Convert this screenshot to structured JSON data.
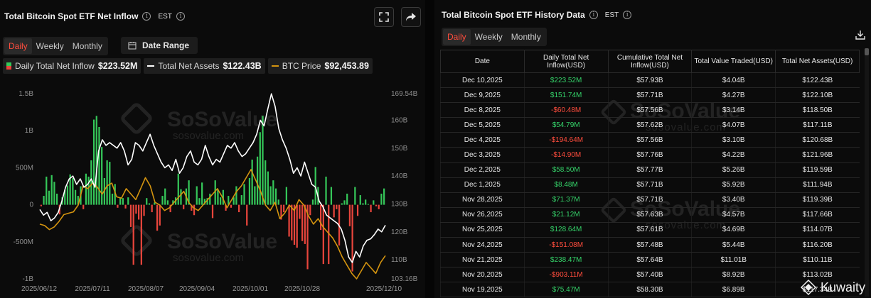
{
  "left": {
    "title": "Total Bitcoin Spot ETF Net Inflow",
    "timezone": "EST",
    "tabs": [
      {
        "label": "Daily",
        "active": true
      },
      {
        "label": "Weekly",
        "active": false
      },
      {
        "label": "Monthly",
        "active": false
      }
    ],
    "date_range_label": "Date Range",
    "legend": [
      {
        "label": "Daily Total Net Inflow",
        "value": "$223.52M",
        "color": "#35c759"
      },
      {
        "label": "Total Net Assets",
        "value": "$122.43B",
        "color": "#ffffff"
      },
      {
        "label": "BTC Price",
        "value": "$92,453.89",
        "color": "#d4940f"
      }
    ],
    "watermark": {
      "brand": "SoSoValue",
      "url": "sosovalue.com"
    }
  },
  "chart_data": {
    "type": "bar",
    "x_tick_labels": [
      "2025/06/12",
      "2025/07/11",
      "2025/08/07",
      "2025/09/04",
      "2025/10/01",
      "2025/10/28",
      "2025/12/10"
    ],
    "left_axis_ticks": [
      "1.5B",
      "1B",
      "500M",
      "0",
      "-500M",
      "-1B"
    ],
    "left_axis_range": [
      -1000000000,
      1500000000
    ],
    "right_axis_ticks": [
      "169.54B",
      "160B",
      "150B",
      "140B",
      "130B",
      "120B",
      "110B",
      "103.16B"
    ],
    "right_axis_range": [
      103.16,
      169.54
    ],
    "series": [
      {
        "name": "Daily Total Net Inflow",
        "unit": "M USD",
        "values": [
          -20,
          120,
          380,
          190,
          400,
          310,
          150,
          -130,
          100,
          200,
          260,
          410,
          360,
          200,
          120,
          250,
          -60,
          420,
          380,
          600,
          1150,
          1200,
          1050,
          780,
          360,
          600,
          580,
          150,
          280,
          -40,
          100,
          90,
          -50,
          100,
          -300,
          -810,
          -120,
          -200,
          -810,
          -150,
          90,
          20,
          -100,
          30,
          -350,
          -280,
          120,
          220,
          60,
          -100,
          60,
          100,
          420,
          210,
          -60,
          220,
          330,
          -80,
          -140,
          250,
          90,
          300,
          80,
          90,
          150,
          -180,
          330,
          210,
          100,
          200,
          -80,
          120,
          -40,
          100,
          250,
          -100,
          130,
          280,
          -280,
          360,
          610,
          250,
          650,
          980,
          1200,
          600,
          450,
          250,
          330,
          220,
          70,
          -200,
          -100,
          240,
          -430,
          -480,
          -540,
          -580,
          -190,
          -490,
          -530,
          -870,
          -140,
          70,
          510,
          240,
          -340,
          -800,
          380,
          -800,
          240,
          -170,
          -60,
          -550,
          20,
          60,
          150,
          -290,
          -900,
          240,
          -150,
          130,
          20,
          70,
          10,
          -100,
          60,
          -20,
          -60,
          150,
          220
        ],
        "colors": {
          "positive": "#35c759",
          "negative": "#e8453c"
        }
      },
      {
        "name": "Total Net Assets",
        "unit": "B USD",
        "values": [
          128,
          126,
          127,
          124,
          125,
          127,
          131,
          136,
          139,
          140,
          137,
          139,
          136,
          137,
          139,
          136,
          149,
          153,
          151,
          152,
          151,
          150,
          152,
          149,
          144,
          146,
          152,
          151,
          149,
          152,
          155,
          151,
          148,
          145,
          143,
          144,
          142,
          146,
          141,
          143,
          147,
          149,
          145,
          144,
          146,
          151,
          147,
          144,
          146,
          145,
          148,
          151,
          150,
          152,
          149,
          147,
          148,
          150,
          152,
          155,
          160,
          158,
          164,
          169.5,
          165,
          157,
          153,
          150,
          146,
          141,
          143,
          140,
          145,
          141,
          137,
          136,
          131,
          129,
          126,
          125,
          124,
          123,
          121,
          117,
          111,
          109,
          113,
          111,
          115,
          117,
          117.5,
          119,
          121,
          120,
          122.4
        ]
      },
      {
        "name": "BTC Price",
        "unit": "USD",
        "values": [
          104000,
          103500,
          102000,
          103000,
          105000,
          107500,
          108000,
          108500,
          111000,
          118000,
          117000,
          119000,
          117500,
          115000,
          118000,
          119000,
          114000,
          113500,
          117000,
          115000,
          113000,
          117000,
          121000,
          118000,
          112000,
          111000,
          109000,
          110000,
          112000,
          114000,
          116000,
          112000,
          110000,
          109000,
          111000,
          113000,
          115000,
          117000,
          114000,
          110000,
          113000,
          116000,
          118000,
          121000,
          124000,
          120000,
          116000,
          111000,
          109000,
          112000,
          106000,
          108000,
          111000,
          109000,
          113000,
          111000,
          107000,
          104000,
          106000,
          103000,
          101000,
          99000,
          96000,
          92000,
          89000,
          86000,
          84000,
          87000,
          90000,
          88000,
          86000,
          90000,
          92500
        ]
      }
    ],
    "legend_position": "top-left",
    "grid": false
  },
  "right": {
    "title": "Total Bitcoin Spot ETF History Data",
    "timezone": "EST",
    "tabs": [
      {
        "label": "Daily",
        "active": true
      },
      {
        "label": "Weekly",
        "active": false
      },
      {
        "label": "Monthly",
        "active": false
      }
    ],
    "columns": [
      "Date",
      "Daily Total Net Inflow(USD)",
      "Cumulative Total Net Inflow(USD)",
      "Total Value Traded(USD)",
      "Total Net Assets(USD)"
    ],
    "rows": [
      {
        "date": "Dec 10,2025",
        "inflow": "$223.52M",
        "sign": "pos",
        "cumulative": "$57.93B",
        "traded": "$4.04B",
        "assets": "$122.43B"
      },
      {
        "date": "Dec 9,2025",
        "inflow": "$151.74M",
        "sign": "pos",
        "cumulative": "$57.71B",
        "traded": "$4.27B",
        "assets": "$122.10B"
      },
      {
        "date": "Dec 8,2025",
        "inflow": "-$60.48M",
        "sign": "neg",
        "cumulative": "$57.56B",
        "traded": "$3.14B",
        "assets": "$118.50B"
      },
      {
        "date": "Dec 5,2025",
        "inflow": "$54.79M",
        "sign": "pos",
        "cumulative": "$57.62B",
        "traded": "$4.07B",
        "assets": "$117.11B"
      },
      {
        "date": "Dec 4,2025",
        "inflow": "-$194.64M",
        "sign": "neg",
        "cumulative": "$57.56B",
        "traded": "$3.10B",
        "assets": "$120.68B"
      },
      {
        "date": "Dec 3,2025",
        "inflow": "-$14.90M",
        "sign": "neg",
        "cumulative": "$57.76B",
        "traded": "$4.22B",
        "assets": "$121.96B"
      },
      {
        "date": "Dec 2,2025",
        "inflow": "$58.50M",
        "sign": "pos",
        "cumulative": "$57.77B",
        "traded": "$5.26B",
        "assets": "$119.59B"
      },
      {
        "date": "Dec 1,2025",
        "inflow": "$8.48M",
        "sign": "pos",
        "cumulative": "$57.71B",
        "traded": "$5.92B",
        "assets": "$111.94B"
      },
      {
        "date": "Nov 28,2025",
        "inflow": "$71.37M",
        "sign": "pos",
        "cumulative": "$57.71B",
        "traded": "$3.40B",
        "assets": "$119.39B"
      },
      {
        "date": "Nov 26,2025",
        "inflow": "$21.12M",
        "sign": "pos",
        "cumulative": "$57.63B",
        "traded": "$4.57B",
        "assets": "$117.66B"
      },
      {
        "date": "Nov 25,2025",
        "inflow": "$128.64M",
        "sign": "pos",
        "cumulative": "$57.61B",
        "traded": "$4.69B",
        "assets": "$114.07B"
      },
      {
        "date": "Nov 24,2025",
        "inflow": "-$151.08M",
        "sign": "neg",
        "cumulative": "$57.48B",
        "traded": "$5.44B",
        "assets": "$116.20B"
      },
      {
        "date": "Nov 21,2025",
        "inflow": "$238.47M",
        "sign": "pos",
        "cumulative": "$57.64B",
        "traded": "$11.01B",
        "assets": "$110.11B"
      },
      {
        "date": "Nov 20,2025",
        "inflow": "-$903.11M",
        "sign": "neg",
        "cumulative": "$57.40B",
        "traded": "$8.92B",
        "assets": "$113.02B"
      },
      {
        "date": "Nov 19,2025",
        "inflow": "$75.47M",
        "sign": "pos",
        "cumulative": "$58.30B",
        "traded": "$6.89B",
        "assets": "$117.34B"
      }
    ],
    "watermark": {
      "brand": "SoSoValue",
      "url": "sosovalue.com"
    }
  },
  "brand_mark": {
    "name": "Kuwaity"
  },
  "icons": {
    "fullscreen": "fullscreen-icon",
    "share": "share-icon",
    "download": "download-icon",
    "calendar": "calendar-icon",
    "info": "info-icon"
  }
}
